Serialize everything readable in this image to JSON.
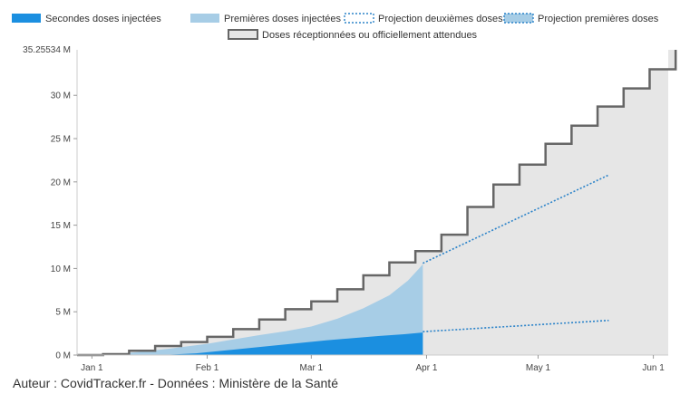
{
  "credit": "Auteur : CovidTracker.fr - Données : Ministère de la Santé",
  "colors": {
    "second": "#1b8fe0",
    "first": "#a7cde6",
    "delivered_fill": "#e6e6e6",
    "delivered_line": "#666666",
    "projection": "#2b83c9"
  },
  "chart_data": {
    "type": "area",
    "legend": [
      {
        "key": "second",
        "label": "Secondes doses injectées"
      },
      {
        "key": "first",
        "label": "Premières doses injectées"
      },
      {
        "key": "proj2",
        "label": "Projection deuxièmes doses"
      },
      {
        "key": "proj1",
        "label": "Projection premières doses"
      },
      {
        "key": "delivered",
        "label": "Doses réceptionnées ou officiellement attendues"
      }
    ],
    "y_ticks": [
      {
        "value": 0,
        "label": "0 M"
      },
      {
        "value": 5,
        "label": "5 M"
      },
      {
        "value": 10,
        "label": "10 M"
      },
      {
        "value": 15,
        "label": "15 M"
      },
      {
        "value": 20,
        "label": "20 M"
      },
      {
        "value": 25,
        "label": "25 M"
      },
      {
        "value": 30,
        "label": "30 M"
      }
    ],
    "y_max_label": "35.25534 M",
    "ylim": [
      0,
      35.25534
    ],
    "x_ticks": [
      {
        "day": 0,
        "label": "Jan 1"
      },
      {
        "day": 31,
        "label": "Feb 1"
      },
      {
        "day": 59,
        "label": "Mar 1"
      },
      {
        "day": 90,
        "label": "Apr 1"
      },
      {
        "day": 120,
        "label": "May 1"
      },
      {
        "day": 151,
        "label": "Jun 1"
      }
    ],
    "xlim": [
      -4,
      155
    ],
    "first_doses": [
      [
        -4,
        0
      ],
      [
        0,
        0.05
      ],
      [
        7,
        0.15
      ],
      [
        14,
        0.4
      ],
      [
        21,
        0.75
      ],
      [
        31,
        1.3
      ],
      [
        38,
        1.8
      ],
      [
        45,
        2.3
      ],
      [
        52,
        2.75
      ],
      [
        59,
        3.3
      ],
      [
        66,
        4.2
      ],
      [
        73,
        5.4
      ],
      [
        80,
        6.9
      ],
      [
        85,
        8.6
      ],
      [
        88,
        10.0
      ],
      [
        89,
        10.5
      ]
    ],
    "second_doses": [
      [
        -4,
        0
      ],
      [
        14,
        0
      ],
      [
        21,
        0.05
      ],
      [
        28,
        0.2
      ],
      [
        35,
        0.5
      ],
      [
        42,
        0.8
      ],
      [
        49,
        1.1
      ],
      [
        56,
        1.4
      ],
      [
        63,
        1.7
      ],
      [
        70,
        1.95
      ],
      [
        77,
        2.2
      ],
      [
        84,
        2.4
      ],
      [
        89,
        2.6
      ]
    ],
    "delivered_steps": [
      [
        -4,
        0.0
      ],
      [
        3,
        0.1
      ],
      [
        10,
        0.5
      ],
      [
        17,
        1.05
      ],
      [
        24,
        1.5
      ],
      [
        31,
        2.1
      ],
      [
        38,
        3.0
      ],
      [
        45,
        4.1
      ],
      [
        52,
        5.3
      ],
      [
        59,
        6.2
      ],
      [
        66,
        7.6
      ],
      [
        73,
        9.2
      ],
      [
        80,
        10.7
      ],
      [
        87,
        12.0
      ],
      [
        94,
        13.9
      ],
      [
        101,
        17.1
      ],
      [
        108,
        19.7
      ],
      [
        115,
        22.0
      ],
      [
        122,
        24.4
      ],
      [
        129,
        26.5
      ],
      [
        136,
        28.7
      ],
      [
        143,
        30.8
      ],
      [
        150,
        33.0
      ],
      [
        157,
        35.25534
      ]
    ],
    "projection_first": [
      [
        89,
        10.6
      ],
      [
        139,
        20.8
      ]
    ],
    "projection_second": [
      [
        89,
        2.7
      ],
      [
        139,
        4.0
      ]
    ]
  }
}
